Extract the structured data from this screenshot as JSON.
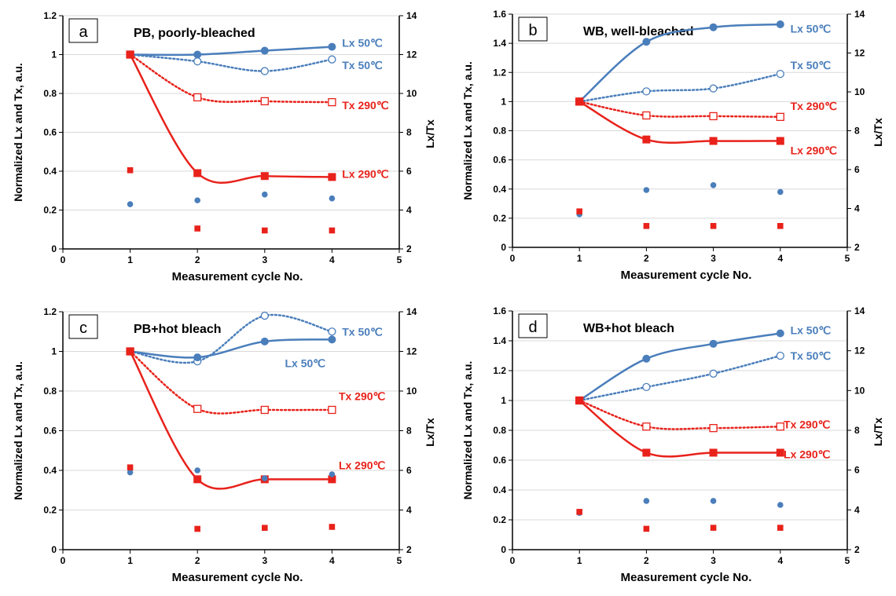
{
  "colors": {
    "blue": "#4A7EBB",
    "red": "#E8221B",
    "axis": "#000000",
    "grid": "#D9D9D9"
  },
  "chart_data": [
    {
      "type": "line",
      "panel_label": "a",
      "title": "PB, poorly-bleached",
      "xlabel": "Measurement cycle No.",
      "ylabel": "Normalized Lx and Tx, a.u.",
      "y2label": "Lx/Tx",
      "xlim": [
        0,
        5
      ],
      "ylim": [
        0,
        1.2
      ],
      "y2lim": [
        2,
        14
      ],
      "xticks": [
        "0",
        "1",
        "2",
        "3",
        "4",
        "5"
      ],
      "yticks": [
        "0",
        "0.2",
        "0.4",
        "0.6",
        "0.8",
        "1",
        "1.2"
      ],
      "y2ticks": [
        "2",
        "4",
        "6",
        "8",
        "10",
        "12",
        "14"
      ],
      "grid": true,
      "series": [
        {
          "name": "Lx 50℃",
          "axis": "left",
          "color": "blue",
          "style": "solid",
          "marker": "circle-filled",
          "x": [
            1,
            2,
            3,
            4
          ],
          "y": [
            1.0,
            1.0,
            1.02,
            1.04
          ],
          "label_text": "Lx  50℃",
          "label_at": [
            4.15,
            1.06
          ]
        },
        {
          "name": "Tx 50℃",
          "axis": "left",
          "color": "blue",
          "style": "dotted",
          "marker": "circle-open",
          "x": [
            1,
            2,
            3,
            4
          ],
          "y": [
            1.0,
            0.965,
            0.915,
            0.975
          ],
          "label_text": "Tx  50℃",
          "label_at": [
            4.15,
            0.945
          ]
        },
        {
          "name": "Tx 290℃",
          "axis": "left",
          "color": "red",
          "style": "dotted",
          "marker": "square-open",
          "x": [
            1,
            2,
            3,
            4
          ],
          "y": [
            1.0,
            0.78,
            0.76,
            0.755
          ],
          "label_text": "Tx  290℃",
          "label_at": [
            4.15,
            0.74
          ]
        },
        {
          "name": "Lx 290℃",
          "axis": "left",
          "color": "red",
          "style": "solid",
          "marker": "square-filled",
          "x": [
            1,
            2,
            3,
            4
          ],
          "y": [
            1.0,
            0.39,
            0.375,
            0.37
          ],
          "label_text": "Lx  290℃",
          "label_at": [
            4.15,
            0.385
          ]
        },
        {
          "name": "Lx/Tx 50℃",
          "axis": "right",
          "color": "blue",
          "style": "none",
          "marker": "dot",
          "x": [
            1,
            2,
            3,
            4
          ],
          "y": [
            4.3,
            4.5,
            4.8,
            4.6
          ]
        },
        {
          "name": "Lx/Tx 290℃",
          "axis": "right",
          "color": "red",
          "style": "none",
          "marker": "square-small",
          "x": [
            1,
            2,
            3,
            4
          ],
          "y": [
            6.05,
            3.05,
            2.95,
            2.95
          ]
        }
      ]
    },
    {
      "type": "line",
      "panel_label": "b",
      "title": "WB, well-bleached",
      "xlabel": "Measurement cycle No.",
      "ylabel": "Normalized Lx and Tx, a.u.",
      "y2label": "Lx/Tx",
      "xlim": [
        0,
        5
      ],
      "ylim": [
        0,
        1.6
      ],
      "y2lim": [
        2,
        14
      ],
      "xticks": [
        "0",
        "1",
        "2",
        "3",
        "4",
        "5"
      ],
      "yticks": [
        "0",
        "0.2",
        "0.4",
        "0.6",
        "0.8",
        "1",
        "1.2",
        "1.4",
        "1.6"
      ],
      "y2ticks": [
        "2",
        "4",
        "6",
        "8",
        "10",
        "12",
        "14"
      ],
      "grid": true,
      "series": [
        {
          "name": "Lx 50℃",
          "axis": "left",
          "color": "blue",
          "style": "solid",
          "marker": "circle-filled",
          "x": [
            1,
            2,
            3,
            4
          ],
          "y": [
            1.0,
            1.41,
            1.51,
            1.53
          ],
          "label_text": "Lx  50℃",
          "label_at": [
            4.15,
            1.5
          ]
        },
        {
          "name": "Tx 50℃",
          "axis": "left",
          "color": "blue",
          "style": "dotted",
          "marker": "circle-open",
          "x": [
            1,
            2,
            3,
            4
          ],
          "y": [
            1.0,
            1.07,
            1.09,
            1.19
          ],
          "label_text": "Tx  50℃",
          "label_at": [
            4.15,
            1.25
          ]
        },
        {
          "name": "Tx 290℃",
          "axis": "left",
          "color": "red",
          "style": "dotted",
          "marker": "square-open",
          "x": [
            1,
            2,
            3,
            4
          ],
          "y": [
            1.0,
            0.905,
            0.9,
            0.895
          ],
          "label_text": "Tx  290℃",
          "label_at": [
            4.15,
            0.97
          ]
        },
        {
          "name": "Lx 290℃",
          "axis": "left",
          "color": "red",
          "style": "solid",
          "marker": "square-filled",
          "x": [
            1,
            2,
            3,
            4
          ],
          "y": [
            1.0,
            0.74,
            0.73,
            0.73
          ],
          "label_text": "Lx  290℃",
          "label_at": [
            4.15,
            0.665
          ]
        },
        {
          "name": "Lx/Tx 50℃",
          "axis": "right",
          "color": "blue",
          "style": "none",
          "marker": "dot",
          "x": [
            1,
            2,
            3,
            4
          ],
          "y": [
            3.7,
            4.95,
            5.2,
            4.85
          ]
        },
        {
          "name": "Lx/Tx 290℃",
          "axis": "right",
          "color": "red",
          "style": "none",
          "marker": "square-small",
          "x": [
            1,
            2,
            3,
            4
          ],
          "y": [
            3.85,
            3.1,
            3.1,
            3.1
          ]
        }
      ]
    },
    {
      "type": "line",
      "panel_label": "c",
      "title": "PB+hot bleach",
      "xlabel": "Measurement cycle No.",
      "ylabel": "Normalized Lx and Tx, a.u.",
      "y2label": "Lx/Tx",
      "xlim": [
        0,
        5
      ],
      "ylim": [
        0,
        1.2
      ],
      "y2lim": [
        2,
        14
      ],
      "xticks": [
        "0",
        "1",
        "2",
        "3",
        "4",
        "5"
      ],
      "yticks": [
        "0",
        "0.2",
        "0.4",
        "0.6",
        "0.8",
        "1",
        "1.2"
      ],
      "y2ticks": [
        "2",
        "4",
        "6",
        "8",
        "10",
        "12",
        "14"
      ],
      "grid": true,
      "series": [
        {
          "name": "Tx 50℃",
          "axis": "left",
          "color": "blue",
          "style": "dotted",
          "marker": "circle-open",
          "x": [
            1,
            2,
            3,
            4
          ],
          "y": [
            1.0,
            0.95,
            1.18,
            1.1
          ],
          "label_text": "Tx  50℃",
          "label_at": [
            4.15,
            1.1
          ]
        },
        {
          "name": "Lx 50℃",
          "axis": "left",
          "color": "blue",
          "style": "solid",
          "marker": "circle-filled",
          "x": [
            1,
            2,
            3,
            4
          ],
          "y": [
            1.0,
            0.97,
            1.05,
            1.06
          ],
          "label_text": "Lx  50℃",
          "label_at": [
            3.3,
            0.94
          ]
        },
        {
          "name": "Tx 290℃",
          "axis": "left",
          "color": "red",
          "style": "dotted",
          "marker": "square-open",
          "x": [
            1,
            2,
            3,
            4
          ],
          "y": [
            1.0,
            0.71,
            0.705,
            0.705
          ],
          "label_text": "Tx  290℃",
          "label_at": [
            4.1,
            0.775
          ]
        },
        {
          "name": "Lx 290℃",
          "axis": "left",
          "color": "red",
          "style": "solid",
          "marker": "square-filled",
          "x": [
            1,
            2,
            3,
            4
          ],
          "y": [
            1.0,
            0.355,
            0.355,
            0.355
          ],
          "label_text": "Lx  290℃",
          "label_at": [
            4.1,
            0.425
          ]
        },
        {
          "name": "Lx/Tx 50℃",
          "axis": "right",
          "color": "blue",
          "style": "none",
          "marker": "dot",
          "x": [
            1,
            2,
            3,
            4
          ],
          "y": [
            5.9,
            6.0,
            5.6,
            5.8
          ]
        },
        {
          "name": "Lx/Tx 290℃",
          "axis": "right",
          "color": "red",
          "style": "none",
          "marker": "square-small",
          "x": [
            1,
            2,
            3,
            4
          ],
          "y": [
            6.15,
            3.05,
            3.1,
            3.15
          ]
        }
      ]
    },
    {
      "type": "line",
      "panel_label": "d",
      "title": "WB+hot bleach",
      "xlabel": "Measurement cycle No.",
      "ylabel": "Normalized Lx and Tx, a.u.",
      "y2label": "Lx/Tx",
      "xlim": [
        0,
        5
      ],
      "ylim": [
        0,
        1.6
      ],
      "y2lim": [
        2,
        14
      ],
      "xticks": [
        "0",
        "1",
        "2",
        "3",
        "4",
        "5"
      ],
      "yticks": [
        "0",
        "0.2",
        "0.4",
        "0.6",
        "0.8",
        "1",
        "1.2",
        "1.4",
        "1.6"
      ],
      "y2ticks": [
        "2",
        "4",
        "6",
        "8",
        "10",
        "12",
        "14"
      ],
      "grid": true,
      "series": [
        {
          "name": "Lx 50℃",
          "axis": "left",
          "color": "blue",
          "style": "solid",
          "marker": "circle-filled",
          "x": [
            1,
            2,
            3,
            4
          ],
          "y": [
            1.0,
            1.28,
            1.38,
            1.45
          ],
          "label_text": "Lx  50℃",
          "label_at": [
            4.15,
            1.47
          ]
        },
        {
          "name": "Tx 50℃",
          "axis": "left",
          "color": "blue",
          "style": "dotted",
          "marker": "circle-open",
          "x": [
            1,
            2,
            3,
            4
          ],
          "y": [
            1.0,
            1.09,
            1.18,
            1.3
          ],
          "label_text": "Tx  50℃",
          "label_at": [
            4.15,
            1.3
          ]
        },
        {
          "name": "Tx 290℃",
          "axis": "left",
          "color": "red",
          "style": "dotted",
          "marker": "square-open",
          "x": [
            1,
            2,
            3,
            4
          ],
          "y": [
            1.0,
            0.825,
            0.815,
            0.825
          ],
          "label_text": "Tx  290℃",
          "label_at": [
            4.05,
            0.84
          ]
        },
        {
          "name": "Lx 290℃",
          "axis": "left",
          "color": "red",
          "style": "solid",
          "marker": "square-filled",
          "x": [
            1,
            2,
            3,
            4
          ],
          "y": [
            1.0,
            0.65,
            0.65,
            0.65
          ],
          "label_text": "Lx  290℃",
          "label_at": [
            4.05,
            0.64
          ]
        },
        {
          "name": "Lx/Tx 50℃",
          "axis": "right",
          "color": "blue",
          "style": "none",
          "marker": "dot",
          "x": [
            1,
            2,
            3,
            4
          ],
          "y": [
            3.85,
            4.45,
            4.45,
            4.25
          ]
        },
        {
          "name": "Lx/Tx 290℃",
          "axis": "right",
          "color": "red",
          "style": "none",
          "marker": "square-small",
          "x": [
            1,
            2,
            3,
            4
          ],
          "y": [
            3.9,
            3.05,
            3.1,
            3.1
          ]
        }
      ]
    }
  ]
}
